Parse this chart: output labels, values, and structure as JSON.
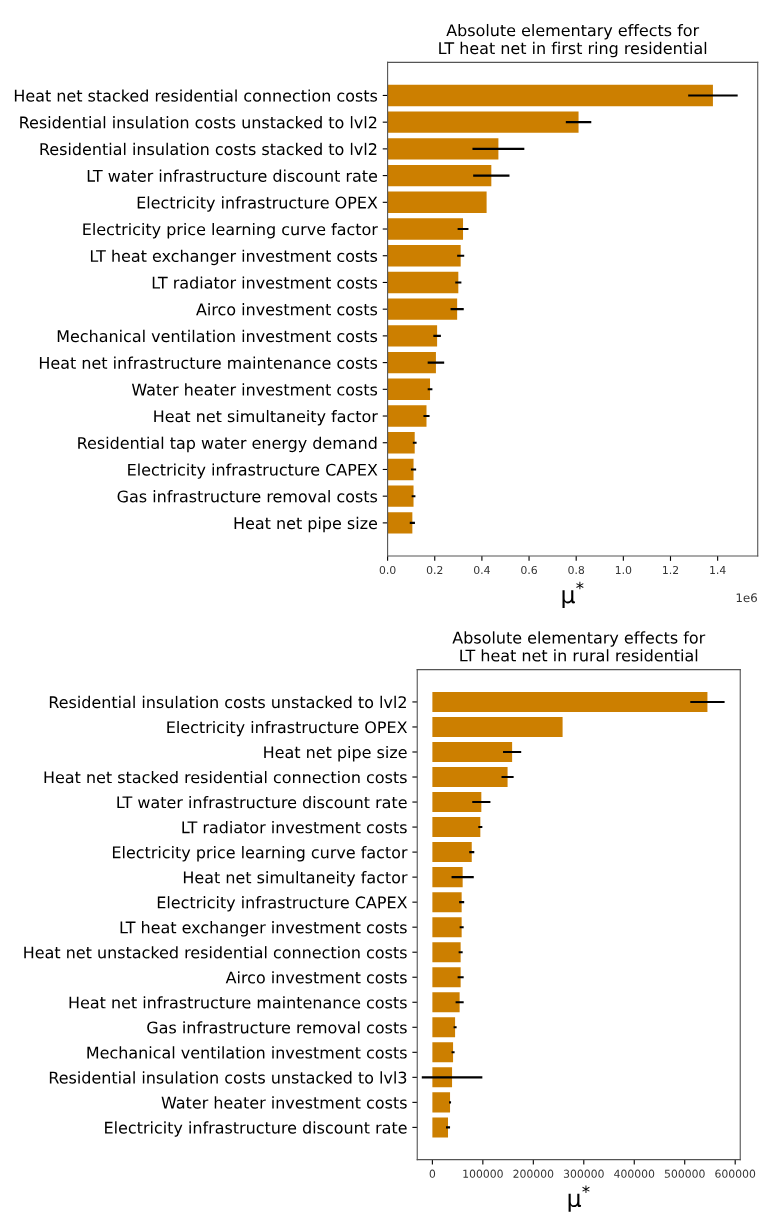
{
  "chart_data": [
    {
      "type": "bar",
      "orientation": "horizontal",
      "title": "Absolute elementary effects for\nLT heat net in first ring residential",
      "xlabel": "μ$^{*}$",
      "categories": [
        "Heat net stacked residential connection costs",
        "Residential insulation costs unstacked to lvl2",
        "Residential insulation costs stacked to lvl2",
        "LT water infrastructure discount rate",
        "Electricity infrastructure OPEX",
        "Electricity price learning curve factor",
        "LT heat exchanger investment costs",
        "LT radiator investment costs",
        "Airco investment costs",
        "Mechanical ventilation investment costs",
        "Heat net infrastructure maintenance costs",
        "Water heater investment costs",
        "Heat net simultaneity factor",
        "Residential tap water energy demand",
        "Electricity infrastructure CAPEX",
        "Gas infrastructure removal costs",
        "Heat net pipe size"
      ],
      "series": [
        {
          "color": "#cc7f00",
          "values": [
            1.38,
            0.81,
            0.47,
            0.44,
            0.42,
            0.32,
            0.31,
            0.3,
            0.295,
            0.21,
            0.205,
            0.18,
            0.165,
            0.115,
            0.11,
            0.11,
            0.105
          ],
          "errors": [
            0.105,
            0.054,
            0.11,
            0.077,
            null,
            0.023,
            0.015,
            0.013,
            0.028,
            0.016,
            0.035,
            0.01,
            0.013,
            0.008,
            0.011,
            0.008,
            0.011
          ]
        }
      ],
      "xlim": [
        0,
        1.57
      ],
      "xticks": [
        {
          "value": 0,
          "label": "0.0"
        },
        0.2,
        0.4,
        0.6,
        0.8,
        {
          "value": 1,
          "label": "1.0"
        },
        1.2,
        1.4
      ],
      "annotations": [
        "1e6"
      ]
    },
    {
      "type": "bar",
      "orientation": "horizontal",
      "title": "Absolute elementary effects for\nLT heat net in rural residential",
      "xlabel": "μ$^{*}$",
      "categories": [
        "Residential insulation costs unstacked to lvl2",
        "Electricity infrastructure OPEX",
        "Heat net pipe size",
        "Heat net stacked residential connection costs",
        "LT water infrastructure discount rate",
        "LT radiator investment costs",
        "Electricity price learning curve factor",
        "Heat net simultaneity factor",
        "Electricity infrastructure CAPEX",
        "LT heat exchanger investment costs",
        "Heat net unstacked residential connection costs",
        "Airco investment costs",
        "Heat net infrastructure maintenance costs",
        "Gas infrastructure removal costs",
        "Mechanical ventilation investment costs",
        "Residential insulation costs unstacked to lvl3",
        "Water heater investment costs",
        "Electricity infrastructure discount rate"
      ],
      "series": [
        {
          "color": "#cc7f00",
          "values": [
            545000,
            258000,
            158000,
            149000,
            97000,
            95000,
            78000,
            60000,
            58000,
            58000,
            56000,
            56000,
            54000,
            45000,
            41000,
            39000,
            35000,
            31000
          ],
          "errors": [
            34000,
            null,
            18000,
            12000,
            18000,
            4000,
            5000,
            22000,
            5000,
            4000,
            4000,
            6000,
            8000,
            3000,
            3000,
            60000,
            2000,
            4000
          ]
        }
      ],
      "xlim": [
        -30000,
        610000
      ],
      "xticks": [
        0,
        100000,
        200000,
        300000,
        400000,
        500000,
        600000
      ]
    }
  ]
}
